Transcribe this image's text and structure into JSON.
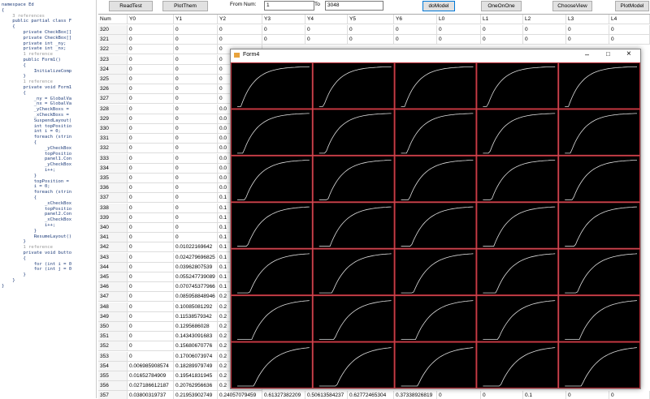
{
  "code": {
    "lines": [
      "namespace Ed",
      "{",
      "    3 references",
      "    public partial class F",
      "    {",
      "        private CheckBox[]",
      "        private CheckBox[]",
      "        private int _ny;",
      "        private int _nx;",
      "        1 reference",
      "        public Form1()",
      "        {",
      "            InitializeComp",
      "        }",
      "        1 reference",
      "        private void Form1",
      "        {",
      "            _ny = GlobalVa",
      "            _nx = GlobalVa",
      "            _yCheckBoxs =",
      "            _xCheckBoxs =",
      "            SuspendLayout(",
      "            int topPositio",
      "            int i = 0;",
      "            foreach (strin",
      "            {",
      "                _yCheckBox",
      "                topPositio",
      "                panel1.Con",
      "                _yCheckBox",
      "                i++;",
      "            }",
      "            topPosition =",
      "            i = 0;",
      "            foreach (strin",
      "            {",
      "                _xCheckBox",
      "                topPositio",
      "                panel2.Con",
      "                _xCheckBox",
      "                i++;",
      "            }",
      "            ResumeLayout()",
      "        }",
      "        1 reference",
      "        private void butto",
      "        {",
      "            for (int i = 0",
      "            for (int j = 0",
      "        }",
      "    }",
      "}"
    ]
  },
  "toolbar": {
    "read_button": "ReadTest",
    "plot_button": "PlotThem",
    "from_label": "From Num:",
    "from_value": "1",
    "to_label": "To",
    "to_value": "3048",
    "model_button": "doModel",
    "one_button": "OneOnOne",
    "view_button": "ChooseView",
    "plotmodel_button": "PlotModel"
  },
  "grid": {
    "columns": [
      "Num",
      "Y0",
      "Y1",
      "Y2",
      "Y3",
      "Y4",
      "Y5",
      "Y6",
      "L0",
      "L1",
      "L2",
      "L3",
      "L4"
    ],
    "rows": [
      [
        "320",
        "0",
        "0",
        "0",
        "0",
        "0",
        "0",
        "0",
        "0",
        "0",
        "0",
        "0",
        "0"
      ],
      [
        "321",
        "0",
        "0",
        "0",
        "0",
        "0",
        "0",
        "0",
        "0",
        "0",
        "0",
        "0",
        "0"
      ],
      [
        "322",
        "0",
        "0",
        "0"
      ],
      [
        "323",
        "0",
        "0",
        "0"
      ],
      [
        "324",
        "0",
        "0",
        "0"
      ],
      [
        "325",
        "0",
        "0",
        "0"
      ],
      [
        "326",
        "0",
        "0",
        "0"
      ],
      [
        "327",
        "0",
        "0",
        "0"
      ],
      [
        "328",
        "0",
        "0",
        "0.0"
      ],
      [
        "329",
        "0",
        "0",
        "0.0"
      ],
      [
        "330",
        "0",
        "0",
        "0.0"
      ],
      [
        "331",
        "0",
        "0",
        "0.0"
      ],
      [
        "332",
        "0",
        "0",
        "0.0"
      ],
      [
        "333",
        "0",
        "0",
        "0.0"
      ],
      [
        "334",
        "0",
        "0",
        "0.0"
      ],
      [
        "335",
        "0",
        "0",
        "0.0"
      ],
      [
        "336",
        "0",
        "0",
        "0.0"
      ],
      [
        "337",
        "0",
        "0",
        "0.1"
      ],
      [
        "338",
        "0",
        "0",
        "0.1"
      ],
      [
        "339",
        "0",
        "0",
        "0.1"
      ],
      [
        "340",
        "0",
        "0",
        "0.1"
      ],
      [
        "341",
        "0",
        "0",
        "0.1"
      ],
      [
        "342",
        "0",
        "0.01022169642",
        "0.1"
      ],
      [
        "343",
        "0",
        "0.024279696825",
        "0.1"
      ],
      [
        "344",
        "0",
        "0.03962807539",
        "0.1"
      ],
      [
        "345",
        "0",
        "0.055247739089",
        "0.1"
      ],
      [
        "346",
        "0",
        "0.070745377966",
        "0.1"
      ],
      [
        "347",
        "0",
        "0.085958848946",
        "0.2"
      ],
      [
        "348",
        "0",
        "0.10085081292",
        "0.2"
      ],
      [
        "349",
        "0",
        "0.11538579342",
        "0.2"
      ],
      [
        "350",
        "0",
        "0.1295686028",
        "0.2"
      ],
      [
        "351",
        "0",
        "0.14343091683",
        "0.2"
      ],
      [
        "352",
        "0",
        "0.15680670776",
        "0.2"
      ],
      [
        "353",
        "0",
        "0.17006073974",
        "0.2"
      ],
      [
        "354",
        "0.006985908574",
        "0.18289979749",
        "0.2"
      ],
      [
        "355",
        "0.01652784909",
        "0.19541831945",
        "0.2"
      ],
      [
        "356",
        "0.027186612187",
        "0.20762956636",
        "0.2"
      ],
      [
        "357",
        "0.03800319737",
        "0.21953902749",
        "0.24057079459",
        "0.61327382209",
        "0.50613584237",
        "0.62772465304",
        "0.37338926819",
        "0",
        "0",
        "0.1",
        "0",
        "0"
      ]
    ]
  },
  "window": {
    "title": "Form4"
  }
}
